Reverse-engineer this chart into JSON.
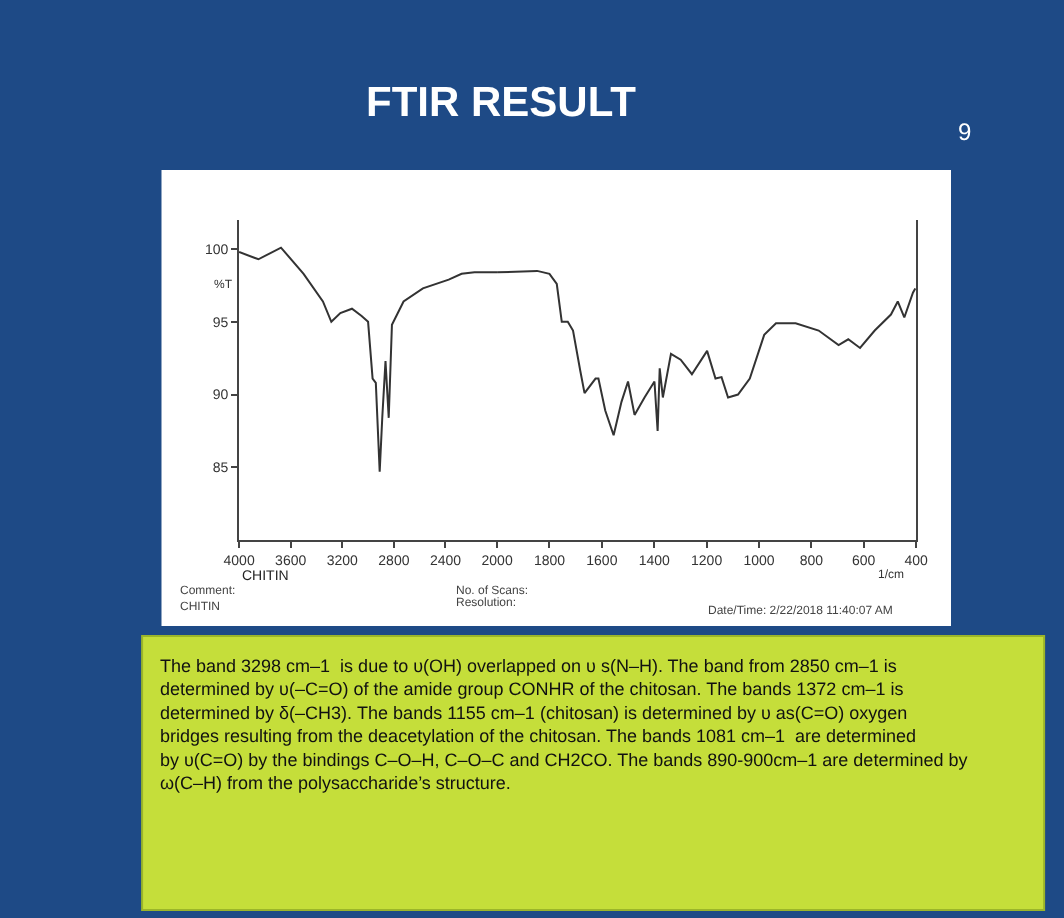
{
  "chart_data": [
    {
      "type": "line",
      "title": "FTIR RESULT",
      "ylabel": "%T",
      "x": [
        4000,
        3850,
        3675,
        3500,
        3350,
        3285,
        3215,
        3125,
        3050,
        3000,
        2965,
        2940,
        2910,
        2890,
        2865,
        2840,
        2815,
        2725,
        2575,
        2375,
        2275,
        2175,
        2000
      ],
      "series": [
        {
          "color": "#333333",
          "values": [
            99.8,
            99.3,
            100.1,
            98.3,
            96.4,
            95.0,
            95.6,
            95.9,
            95.4,
            95.0,
            91.1,
            90.8,
            84.7,
            88.4,
            92.3,
            88.4,
            94.8,
            96.4,
            97.3,
            97.9,
            98.3,
            98.4,
            98.4
          ]
        }
      ],
      "xlim": [
        4000,
        2000
      ],
      "xticks": [
        4000,
        3600,
        3200,
        2800,
        2400,
        2000
      ],
      "ylim": [
        80,
        102
      ],
      "yticks": [
        85,
        90,
        95,
        100
      ],
      "marker": "none",
      "line_style": "solid",
      "annotations": [
        "CHITIN",
        "Comment:",
        "CHITIN",
        "No. of Scans:",
        "Resolution:",
        "Date/Time: 2/22/2018 11:40:07 AM",
        "9",
        "The band 3298 cm–1  is due to υ(OH) overlapped on υ s(N–H). The band from 2850 cm–1 is determined by υ(–C=O) of the amide group CONHR of the chitosan. The bands 1372 cm–1 is determined by δ(–CH3). The bands 1155 cm–1 (chitosan) is determined by υ as(C=O) oxygen bridges resulting from the deacetylation of the chitosan. The bands 1081 cm–1  are determined by υ(C=O) by the bindings C–O–H, C–O–C and CH2CO. The bands 890-900cm–1 are determined by ω(C–H) from the polysaccharide’s structure."
      ]
    },
    {
      "type": "line",
      "xlabel": "1/cm",
      "x": [
        2000,
        1847,
        1800,
        1772,
        1753,
        1730,
        1710,
        1682,
        1666,
        1624,
        1613,
        1587,
        1555,
        1525,
        1500,
        1475,
        1437,
        1399,
        1387,
        1379,
        1367,
        1336,
        1299,
        1256,
        1198,
        1166,
        1143,
        1118,
        1080,
        1035,
        980,
        935,
        860,
        772,
        696,
        659,
        614,
        558,
        496,
        470,
        445,
        412,
        403
      ],
      "series": [
        {
          "color": "#333333",
          "values": [
            98.4,
            98.5,
            98.3,
            97.6,
            95.0,
            95.0,
            94.4,
            91.6,
            90.1,
            91.1,
            91.1,
            88.9,
            87.2,
            89.5,
            90.9,
            88.6,
            89.8,
            90.9,
            87.5,
            91.8,
            89.8,
            92.8,
            92.4,
            91.4,
            93.0,
            91.1,
            91.2,
            89.8,
            90.0,
            91.1,
            94.1,
            94.9,
            94.9,
            94.4,
            93.4,
            93.8,
            93.2,
            94.4,
            95.5,
            96.4,
            95.3,
            97.0,
            97.3
          ]
        }
      ],
      "xlim": [
        2000,
        400
      ],
      "xticks": [
        1800,
        1600,
        1400,
        1200,
        1000,
        800,
        600,
        400
      ],
      "ylim": [
        80,
        102
      ],
      "tick_labels": "x",
      "marker": "none",
      "line_style": "solid"
    }
  ]
}
